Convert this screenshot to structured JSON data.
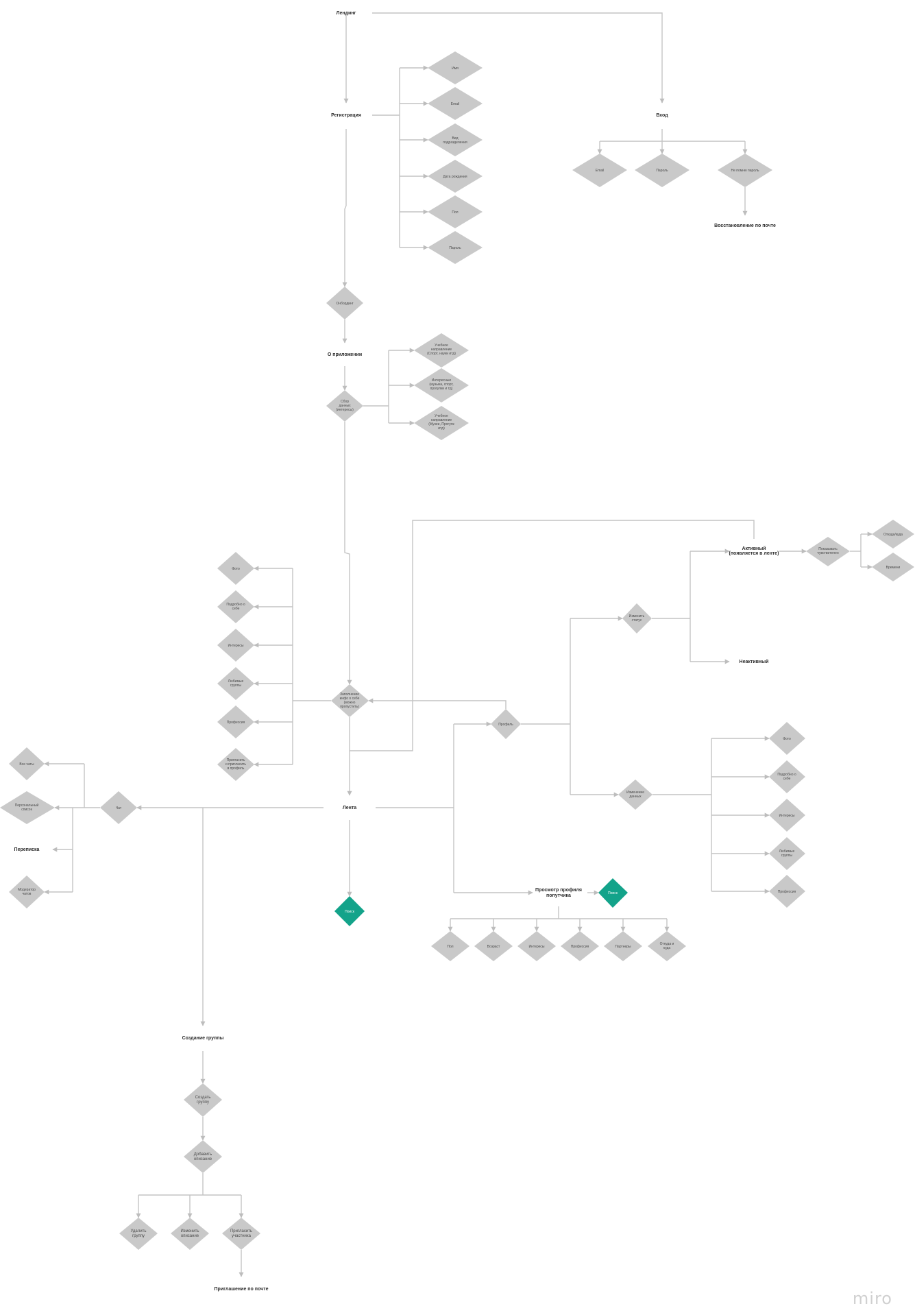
{
  "nodes": {
    "landing": "Лендинг",
    "registration": "Регистрация",
    "reg_name": "Имя",
    "reg_email": "Email",
    "reg_spec": [
      "Вид",
      "подразделения"
    ],
    "reg_birth": "Дата рождения",
    "reg_sex": "Пол",
    "reg_pass": "Пароль",
    "login": "Вход",
    "login_email": "Email",
    "login_pass": "Пароль",
    "forgot": "Не помню пароль",
    "restore": "Восстановление по почте",
    "onboarding": "Онбординг",
    "about": "О приложении",
    "collect": [
      "Сбор",
      "данных",
      "(интересы)"
    ],
    "dir1": [
      "Учебное",
      "направление",
      "(Спорт, науки итд)"
    ],
    "dir2": [
      "Интересные",
      "(музыка, спорт,",
      "прогулки и тд)"
    ],
    "dir3": [
      "Учебное",
      "направление",
      "(Музеи, Прогулк",
      "итд)"
    ],
    "fill_about": [
      "Заполнение",
      "инфо о себе",
      "(можно",
      "пропустить)"
    ],
    "photo": "Фото",
    "about_me": [
      "Подробно о",
      "себе"
    ],
    "interests": "Интересы",
    "fav_groups": [
      "Любимые",
      "группы"
    ],
    "profession": "Профессия",
    "invite_profile": [
      "Пригласить",
      "и пригласить",
      "в профиль"
    ],
    "profile": "Профиль",
    "change_status": [
      "Изменить",
      "статус"
    ],
    "active": [
      "Активный",
      "(появляется в ленте)"
    ],
    "inactive": "Неактивный",
    "search_partner": [
      "Показывать",
      "чувствителен"
    ],
    "from_where": "Откуда/куда",
    "time": "Времени",
    "change_data": [
      "Изменение",
      "данных"
    ],
    "p_photo": "Фото",
    "p_about": [
      "Подробно о",
      "себе"
    ],
    "p_interests": "Интересы",
    "p_groups": [
      "Любимые",
      "группы"
    ],
    "p_prof": "Профессия",
    "feed": "Лента",
    "chat": "Чат",
    "all_chats": "Все чаты",
    "personal_chat": [
      "Персональный",
      "список"
    ],
    "messaging": "Переписка",
    "moderator": [
      "Модератор",
      "чатов"
    ],
    "search_green": "Поиск",
    "view_profile": [
      "Просмотр профиля",
      "попутчика"
    ],
    "view_green": "Поиск",
    "v_sex": "Пол",
    "v_age": "Возраст",
    "v_interests": "Интересы",
    "v_prof": "Профессия",
    "v_partner": "Партнеры",
    "v_from": [
      "Откуда и",
      "куда"
    ],
    "create_group": "Создание группы",
    "make_group": [
      "Создать",
      "группу"
    ],
    "add_desc": [
      "Добавить",
      "описание"
    ],
    "delete_group": [
      "Удалить",
      "группу"
    ],
    "edit_desc": [
      "Изменить",
      "описание"
    ],
    "invite_member": [
      "Пригласить",
      "участника"
    ],
    "invite_mail": "Приглашение по почте"
  },
  "brand": {
    "logo": "miro"
  },
  "colors": {
    "diamond": "#c9c9c9",
    "accent": "#13a38a",
    "connector": "#c4c4c4",
    "background": "#ffffff"
  }
}
